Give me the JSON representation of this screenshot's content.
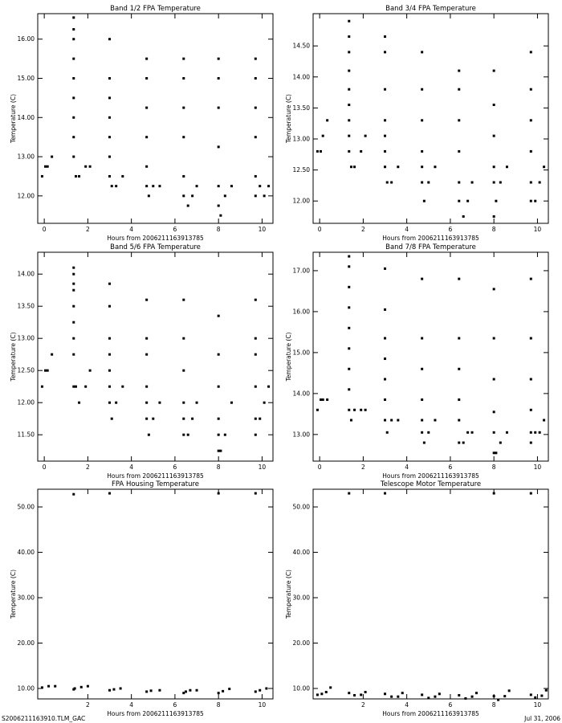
{
  "chart_data": [
    {
      "type": "scatter",
      "title": "Band 1/2 FPA Temperature",
      "x_label": "Hours from 2006211163913785",
      "y_label": "Temperature (C)",
      "xlim": [
        -0.3,
        10.5
      ],
      "ylim": [
        11.3,
        16.65
      ],
      "xticks": [
        0,
        2,
        4,
        6,
        8,
        10
      ],
      "yticks": [
        {
          "value": 12,
          "label": "12.00"
        },
        {
          "value": 13,
          "label": "13.00"
        },
        {
          "value": 14,
          "label": "14.00"
        },
        {
          "value": 15,
          "label": "15.00"
        },
        {
          "value": 16,
          "label": "16.00"
        }
      ],
      "series": [
        {
          "color": "#000000",
          "x": [
            -0.1,
            0.05,
            0.15,
            0.35,
            1.35,
            1.35,
            1.35,
            1.35,
            1.35,
            1.35,
            1.35,
            1.35,
            1.35,
            1.45,
            1.6,
            1.9,
            2.1,
            3.0,
            3.0,
            3.0,
            3.0,
            3.0,
            3.0,
            3.0,
            3.1,
            3.3,
            3.6,
            4.7,
            4.7,
            4.7,
            4.7,
            4.7,
            4.7,
            4.8,
            5.0,
            5.3,
            6.4,
            6.4,
            6.4,
            6.4,
            6.4,
            6.4,
            6.6,
            6.8,
            7.0,
            8.0,
            8.0,
            8.0,
            8.0,
            8.0,
            8.0,
            8.1,
            8.3,
            8.6,
            9.7,
            9.7,
            9.7,
            9.7,
            9.7,
            9.7,
            9.9,
            10.1,
            10.3
          ],
          "values": [
            12.5,
            12.75,
            12.75,
            13.0,
            13.0,
            13.5,
            14.0,
            14.5,
            15.0,
            15.5,
            16.0,
            16.25,
            16.55,
            12.5,
            12.5,
            12.75,
            12.75,
            12.5,
            13.0,
            13.5,
            14.0,
            14.5,
            15.0,
            16.0,
            12.25,
            12.25,
            12.5,
            12.25,
            12.75,
            13.5,
            14.25,
            15.0,
            15.5,
            12.0,
            12.25,
            12.25,
            12.0,
            12.5,
            13.5,
            14.25,
            15.0,
            15.5,
            11.75,
            12.0,
            12.25,
            11.75,
            12.25,
            13.25,
            14.25,
            15.0,
            15.5,
            11.5,
            12.0,
            12.25,
            12.0,
            12.5,
            13.5,
            14.25,
            15.0,
            15.5,
            12.25,
            12.0,
            12.25
          ]
        }
      ]
    },
    {
      "type": "scatter",
      "title": "Band 3/4 FPA Temperature",
      "x_label": "Hours from 2006211163913785",
      "y_label": "Temperature (C)",
      "xlim": [
        -0.3,
        10.5
      ],
      "ylim": [
        11.64,
        15.02
      ],
      "xticks": [
        0,
        2,
        4,
        6,
        8,
        10
      ],
      "yticks": [
        {
          "value": 12,
          "label": "12.00"
        },
        {
          "value": 12.5,
          "label": "12.50"
        },
        {
          "value": 13,
          "label": "13.00"
        },
        {
          "value": 13.5,
          "label": "13.50"
        },
        {
          "value": 14,
          "label": "14.00"
        },
        {
          "value": 14.5,
          "label": "14.50"
        }
      ],
      "series": [
        {
          "color": "#000000",
          "x": [
            -0.1,
            0.05,
            0.15,
            0.35,
            1.35,
            1.35,
            1.35,
            1.35,
            1.35,
            1.35,
            1.35,
            1.35,
            1.35,
            1.45,
            1.6,
            1.9,
            2.1,
            3.0,
            3.0,
            3.0,
            3.0,
            3.0,
            3.0,
            3.0,
            3.1,
            3.3,
            3.6,
            4.7,
            4.7,
            4.7,
            4.7,
            4.7,
            4.7,
            4.8,
            5.0,
            5.3,
            6.4,
            6.4,
            6.4,
            6.4,
            6.4,
            6.4,
            6.6,
            6.8,
            7.0,
            8.0,
            8.0,
            8.0,
            8.0,
            8.0,
            8.0,
            8.1,
            8.3,
            8.6,
            9.7,
            9.7,
            9.7,
            9.7,
            9.7,
            9.7,
            9.9,
            10.1,
            10.3
          ],
          "values": [
            12.8,
            12.8,
            13.05,
            13.3,
            12.8,
            13.05,
            13.3,
            13.55,
            13.8,
            14.1,
            14.4,
            14.65,
            14.9,
            12.55,
            12.55,
            12.8,
            13.05,
            12.55,
            12.8,
            13.05,
            13.3,
            13.8,
            14.4,
            14.65,
            12.3,
            12.3,
            12.55,
            12.3,
            12.55,
            12.8,
            13.3,
            13.8,
            14.4,
            12.0,
            12.3,
            12.55,
            12.0,
            12.3,
            12.8,
            13.3,
            13.8,
            14.1,
            11.75,
            12.0,
            12.3,
            11.75,
            12.3,
            12.55,
            13.05,
            13.55,
            14.1,
            12.0,
            12.3,
            12.55,
            12.0,
            12.3,
            12.8,
            13.3,
            13.8,
            14.4,
            12.0,
            12.3,
            12.55
          ]
        }
      ]
    },
    {
      "type": "scatter",
      "title": "Band 5/6 FPA Temperature",
      "x_label": "Hours from 2006211163913785",
      "y_label": "Temperature (C)",
      "xlim": [
        -0.3,
        10.5
      ],
      "ylim": [
        11.09,
        14.34
      ],
      "xticks": [
        0,
        2,
        4,
        6,
        8,
        10
      ],
      "yticks": [
        {
          "value": 11.5,
          "label": "11.50"
        },
        {
          "value": 12,
          "label": "12.00"
        },
        {
          "value": 12.5,
          "label": "12.50"
        },
        {
          "value": 13,
          "label": "13.00"
        },
        {
          "value": 13.5,
          "label": "13.50"
        },
        {
          "value": 14,
          "label": "14.00"
        }
      ],
      "series": [
        {
          "color": "#000000",
          "x": [
            -0.1,
            0.05,
            0.15,
            0.35,
            1.35,
            1.35,
            1.35,
            1.35,
            1.35,
            1.35,
            1.35,
            1.35,
            1.35,
            1.45,
            1.6,
            1.9,
            2.1,
            3.0,
            3.0,
            3.0,
            3.0,
            3.0,
            3.0,
            3.0,
            3.1,
            3.3,
            3.6,
            4.7,
            4.7,
            4.7,
            4.7,
            4.7,
            4.7,
            4.8,
            5.0,
            5.3,
            6.4,
            6.4,
            6.4,
            6.4,
            6.4,
            6.4,
            6.6,
            6.8,
            7.0,
            8.0,
            8.0,
            8.0,
            8.0,
            8.0,
            8.0,
            8.1,
            8.3,
            8.6,
            9.7,
            9.7,
            9.7,
            9.7,
            9.7,
            9.7,
            9.9,
            10.1,
            10.3
          ],
          "values": [
            12.25,
            12.5,
            12.5,
            12.75,
            12.25,
            12.75,
            13.0,
            13.25,
            13.5,
            13.75,
            13.85,
            14.0,
            14.1,
            12.25,
            12.0,
            12.25,
            12.5,
            12.0,
            12.25,
            12.5,
            12.75,
            13.0,
            13.5,
            13.85,
            11.75,
            12.0,
            12.25,
            11.75,
            12.0,
            12.25,
            12.75,
            13.0,
            13.6,
            11.5,
            11.75,
            12.0,
            11.5,
            11.75,
            12.0,
            12.5,
            13.0,
            13.6,
            11.5,
            11.75,
            12.0,
            11.25,
            11.5,
            11.75,
            12.25,
            12.75,
            13.35,
            11.25,
            11.5,
            12.0,
            11.5,
            11.75,
            12.25,
            12.75,
            13.0,
            13.6,
            11.75,
            12.0,
            12.25
          ]
        }
      ]
    },
    {
      "type": "scatter",
      "title": "Band 7/8 FPA Temperature",
      "x_label": "Hours from 2006211163913785",
      "y_label": "Temperature (C)",
      "xlim": [
        -0.3,
        10.5
      ],
      "ylim": [
        12.35,
        17.45
      ],
      "xticks": [
        0,
        2,
        4,
        6,
        8,
        10
      ],
      "yticks": [
        {
          "value": 13,
          "label": "13.00"
        },
        {
          "value": 14,
          "label": "14.00"
        },
        {
          "value": 15,
          "label": "15.00"
        },
        {
          "value": 16,
          "label": "16.00"
        },
        {
          "value": 17,
          "label": "17.00"
        }
      ],
      "series": [
        {
          "color": "#000000",
          "x": [
            -0.1,
            0.05,
            0.15,
            0.35,
            1.35,
            1.35,
            1.35,
            1.35,
            1.35,
            1.35,
            1.35,
            1.35,
            1.35,
            1.45,
            1.6,
            1.9,
            2.1,
            3.0,
            3.0,
            3.0,
            3.0,
            3.0,
            3.0,
            3.0,
            3.1,
            3.3,
            3.6,
            4.7,
            4.7,
            4.7,
            4.7,
            4.7,
            4.7,
            4.8,
            5.0,
            5.3,
            6.4,
            6.4,
            6.4,
            6.4,
            6.4,
            6.4,
            6.6,
            6.8,
            7.0,
            8.0,
            8.0,
            8.0,
            8.0,
            8.0,
            8.0,
            8.1,
            8.3,
            8.6,
            9.7,
            9.7,
            9.7,
            9.7,
            9.7,
            9.7,
            9.9,
            10.1,
            10.3
          ],
          "values": [
            13.6,
            13.85,
            13.85,
            13.85,
            13.6,
            14.1,
            14.6,
            15.1,
            15.6,
            16.1,
            16.6,
            17.1,
            17.35,
            13.35,
            13.6,
            13.6,
            13.6,
            13.35,
            13.85,
            14.35,
            14.85,
            15.35,
            16.05,
            17.05,
            13.05,
            13.35,
            13.35,
            13.05,
            13.35,
            13.85,
            14.6,
            15.35,
            16.8,
            12.8,
            13.05,
            13.35,
            12.8,
            13.35,
            13.85,
            14.6,
            15.35,
            16.8,
            12.8,
            13.05,
            13.05,
            12.55,
            13.05,
            13.55,
            14.35,
            15.35,
            16.55,
            12.55,
            12.8,
            13.05,
            12.8,
            13.05,
            13.6,
            14.35,
            15.35,
            16.8,
            13.05,
            13.05,
            13.35
          ]
        }
      ]
    },
    {
      "type": "scatter",
      "title": "FPA Housing Temperature",
      "x_label": "Hours from 2006211163913785",
      "y_label": "Temperature (C)",
      "xlim": [
        -0.3,
        10.5
      ],
      "ylim": [
        7.7,
        53.9
      ],
      "xticks": [
        2,
        4,
        6,
        8,
        10
      ],
      "yticks": [
        {
          "value": 10,
          "label": "10.00"
        },
        {
          "value": 20,
          "label": "20.00"
        },
        {
          "value": 30,
          "label": "30.00"
        },
        {
          "value": 40,
          "label": "40.00"
        },
        {
          "value": 50,
          "label": "50.00"
        }
      ],
      "series": [
        {
          "color": "#000000",
          "x": [
            -0.1,
            0.2,
            0.5,
            1.35,
            1.4,
            1.7,
            2.0,
            3.0,
            3.2,
            3.5,
            4.7,
            4.9,
            5.3,
            6.4,
            6.5,
            6.7,
            7.0,
            8.0,
            8.2,
            8.5,
            9.7,
            9.9,
            10.2,
            1.35,
            3.0,
            8.0,
            9.7
          ],
          "values": [
            10.2,
            10.5,
            10.5,
            9.8,
            10.0,
            10.3,
            10.5,
            9.6,
            9.8,
            10.0,
            9.3,
            9.5,
            9.6,
            9.0,
            9.3,
            9.6,
            9.6,
            9.0,
            9.4,
            9.9,
            9.3,
            9.6,
            10.0,
            52.8,
            53.0,
            53.0,
            53.0
          ]
        }
      ]
    },
    {
      "type": "scatter",
      "title": "Telescope Motor Temperature",
      "x_label": "Hours from 2006211163913785",
      "y_label": "Temperature (C)",
      "xlim": [
        -0.3,
        10.5
      ],
      "ylim": [
        7.7,
        53.9
      ],
      "xticks": [
        2,
        4,
        6,
        8,
        10
      ],
      "yticks": [
        {
          "value": 10,
          "label": "10.00"
        },
        {
          "value": 20,
          "label": "20.00"
        },
        {
          "value": 30,
          "label": "30.00"
        },
        {
          "value": 40,
          "label": "40.00"
        },
        {
          "value": 50,
          "label": "50.00"
        }
      ],
      "series": [
        {
          "color": "#000000",
          "x": [
            -0.1,
            0.1,
            0.3,
            0.5,
            1.35,
            1.6,
            1.9,
            2.1,
            3.0,
            3.3,
            3.6,
            3.8,
            4.7,
            5.0,
            5.3,
            5.5,
            6.4,
            6.7,
            7.0,
            7.2,
            8.0,
            8.2,
            8.5,
            8.7,
            9.7,
            9.9,
            10.2,
            10.4,
            1.35,
            3.0,
            8.0,
            9.7
          ],
          "values": [
            8.6,
            8.8,
            9.2,
            10.2,
            9.0,
            8.5,
            8.6,
            9.2,
            8.8,
            8.2,
            8.2,
            9.0,
            8.6,
            7.9,
            8.2,
            8.8,
            8.5,
            7.8,
            8.2,
            9.0,
            8.3,
            7.5,
            8.3,
            9.5,
            8.6,
            8.0,
            8.4,
            9.6,
            53.0,
            53.0,
            53.0,
            53.0
          ]
        }
      ]
    }
  ],
  "footer": {
    "left": "S2006211163910.TLM_GAC",
    "right": "Jul 31, 2006"
  }
}
